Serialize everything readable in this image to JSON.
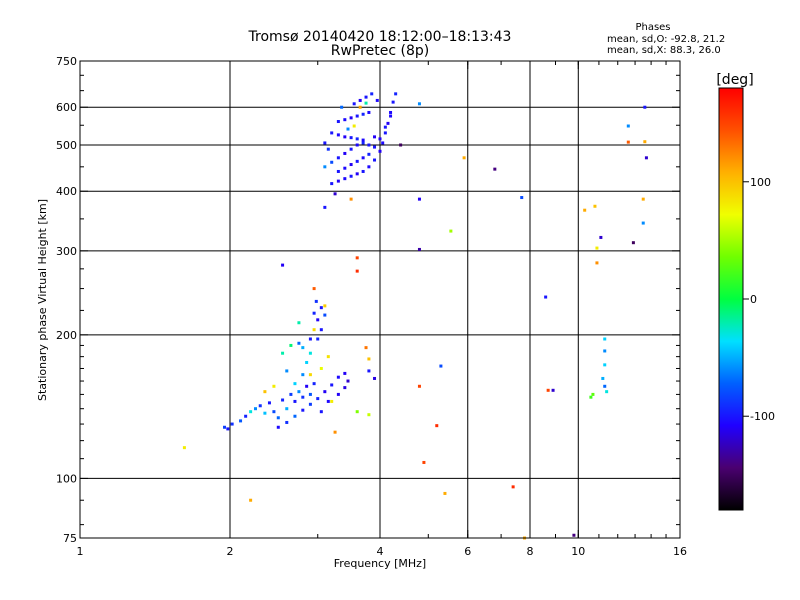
{
  "chart_data": {
    "type": "scatter",
    "title": "Tromsø 20140420 18:12:00–18:13:43",
    "subtitle": "RwPretec (8p)",
    "info": {
      "heading": "Phases",
      "line_o": "mean, sd,O:  -92.8, 21.2",
      "line_x": "mean, sd,X:  88.3, 26.0"
    },
    "xlabel": "Frequency [MHz]",
    "ylabel": "Stationary phase Virtual Height [km]",
    "x_scale": "log",
    "y_scale": "log",
    "xlim": [
      1,
      16
    ],
    "ylim": [
      75,
      750
    ],
    "x_ticks": [
      {
        "value": 1,
        "label": "1"
      },
      {
        "value": 2,
        "label": "2"
      },
      {
        "value": 4,
        "label": "4"
      },
      {
        "value": 6,
        "label": "6"
      },
      {
        "value": 8,
        "label": "8"
      },
      {
        "value": 10,
        "label": "10"
      },
      {
        "value": 16,
        "label": "16"
      }
    ],
    "y_ticks": [
      {
        "value": 75,
        "label": "75"
      },
      {
        "value": 100,
        "label": "100"
      },
      {
        "value": 200,
        "label": "200"
      },
      {
        "value": 300,
        "label": "300"
      },
      {
        "value": 400,
        "label": "400"
      },
      {
        "value": 500,
        "label": "500"
      },
      {
        "value": 600,
        "label": "600"
      },
      {
        "value": 750,
        "label": "750"
      }
    ],
    "x_gridlines": [
      2,
      4,
      6,
      8,
      10
    ],
    "y_gridlines": [
      100,
      200,
      300,
      400,
      500,
      600
    ],
    "grid": true,
    "colorbar": {
      "label": "[deg]",
      "range": [
        -180,
        180
      ],
      "ticks": [
        {
          "value": 100,
          "label": "100"
        },
        {
          "value": 0,
          "label": "0"
        },
        {
          "value": -100,
          "label": "-100"
        }
      ]
    },
    "series": [
      {
        "points": [
          [
            1.62,
            116,
            80
          ],
          [
            1.95,
            128,
            -85
          ],
          [
            1.98,
            127,
            -100
          ],
          [
            2.02,
            130,
            -90
          ],
          [
            2.1,
            132,
            -75
          ],
          [
            2.15,
            135,
            -95
          ],
          [
            2.2,
            138,
            -30
          ],
          [
            2.25,
            140,
            -60
          ],
          [
            2.3,
            142,
            -90
          ],
          [
            2.35,
            137,
            -45
          ],
          [
            2.4,
            144,
            -100
          ],
          [
            2.45,
            138,
            -80
          ],
          [
            2.5,
            134,
            -70
          ],
          [
            2.55,
            146,
            -95
          ],
          [
            2.6,
            140,
            -50
          ],
          [
            2.65,
            150,
            -85
          ],
          [
            2.7,
            145,
            -100
          ],
          [
            2.75,
            152,
            -60
          ],
          [
            2.8,
            148,
            -90
          ],
          [
            2.85,
            156,
            -110
          ],
          [
            2.9,
            150,
            -75
          ],
          [
            2.95,
            158,
            -95
          ],
          [
            2.5,
            128,
            -105
          ],
          [
            2.6,
            131,
            -90
          ],
          [
            2.7,
            135,
            -70
          ],
          [
            2.8,
            139,
            -100
          ],
          [
            2.9,
            143,
            -85
          ],
          [
            3.0,
            147,
            -95
          ],
          [
            3.1,
            152,
            -110
          ],
          [
            3.2,
            157,
            -100
          ],
          [
            3.3,
            163,
            -105
          ],
          [
            3.4,
            166,
            -110
          ],
          [
            3.45,
            160,
            -120
          ],
          [
            3.05,
            138,
            -100
          ],
          [
            3.15,
            145,
            -105
          ],
          [
            3.3,
            150,
            -110
          ],
          [
            3.4,
            155,
            -115
          ],
          [
            2.7,
            158,
            -40
          ],
          [
            2.8,
            165,
            -60
          ],
          [
            2.85,
            175,
            -40
          ],
          [
            2.9,
            183,
            -30
          ],
          [
            2.8,
            188,
            -50
          ],
          [
            2.75,
            192,
            -70
          ],
          [
            2.9,
            196,
            -100
          ],
          [
            3.0,
            196,
            -95
          ],
          [
            3.05,
            205,
            -100
          ],
          [
            3.0,
            215,
            -110
          ],
          [
            2.95,
            222,
            -95
          ],
          [
            3.05,
            228,
            -100
          ],
          [
            2.98,
            235,
            -90
          ],
          [
            3.1,
            220,
            -80
          ],
          [
            3.15,
            180,
            85
          ],
          [
            3.05,
            170,
            70
          ],
          [
            2.9,
            165,
            90
          ],
          [
            2.95,
            205,
            90
          ],
          [
            3.1,
            230,
            95
          ],
          [
            2.95,
            250,
            140
          ],
          [
            2.55,
            280,
            -110
          ],
          [
            2.75,
            212,
            -20
          ],
          [
            2.65,
            190,
            -10
          ],
          [
            2.55,
            183,
            -20
          ],
          [
            2.6,
            168,
            -60
          ],
          [
            3.6,
            290,
            150
          ],
          [
            3.6,
            272,
            160
          ],
          [
            3.75,
            188,
            130
          ],
          [
            3.8,
            178,
            100
          ],
          [
            3.8,
            168,
            -100
          ],
          [
            3.9,
            162,
            -115
          ],
          [
            3.6,
            138,
            40
          ],
          [
            3.8,
            136,
            60
          ],
          [
            3.2,
            145,
            80
          ],
          [
            3.25,
            125,
            120
          ],
          [
            2.35,
            152,
            100
          ],
          [
            2.45,
            156,
            80
          ],
          [
            3.2,
            415,
            -100
          ],
          [
            3.3,
            420,
            -110
          ],
          [
            3.4,
            425,
            -105
          ],
          [
            3.5,
            430,
            -100
          ],
          [
            3.6,
            435,
            -110
          ],
          [
            3.7,
            440,
            -100
          ],
          [
            3.8,
            450,
            -105
          ],
          [
            3.9,
            465,
            -100
          ],
          [
            4.0,
            485,
            -110
          ],
          [
            4.05,
            505,
            -105
          ],
          [
            4.1,
            530,
            -100
          ],
          [
            4.15,
            555,
            -110
          ],
          [
            4.2,
            585,
            -105
          ],
          [
            4.25,
            615,
            -100
          ],
          [
            4.3,
            640,
            -95
          ],
          [
            3.3,
            440,
            -100
          ],
          [
            3.4,
            447,
            -105
          ],
          [
            3.5,
            455,
            -110
          ],
          [
            3.6,
            462,
            -100
          ],
          [
            3.7,
            470,
            -105
          ],
          [
            3.8,
            478,
            -95
          ],
          [
            3.9,
            495,
            -100
          ],
          [
            4.0,
            515,
            -110
          ],
          [
            4.1,
            545,
            -100
          ],
          [
            4.2,
            575,
            -105
          ],
          [
            3.3,
            470,
            -100
          ],
          [
            3.4,
            480,
            -110
          ],
          [
            3.5,
            490,
            -100
          ],
          [
            3.6,
            500,
            -105
          ],
          [
            3.7,
            505,
            -95
          ],
          [
            3.8,
            500,
            -100
          ],
          [
            3.9,
            520,
            -110
          ],
          [
            3.2,
            530,
            -100
          ],
          [
            3.3,
            525,
            -105
          ],
          [
            3.4,
            520,
            -110
          ],
          [
            3.5,
            518,
            -100
          ],
          [
            3.6,
            515,
            -95
          ],
          [
            3.7,
            512,
            -105
          ],
          [
            3.3,
            560,
            -100
          ],
          [
            3.4,
            565,
            -105
          ],
          [
            3.5,
            570,
            -110
          ],
          [
            3.6,
            575,
            -100
          ],
          [
            3.7,
            580,
            -95
          ],
          [
            3.8,
            585,
            -105
          ],
          [
            3.55,
            610,
            -100
          ],
          [
            3.65,
            620,
            -110
          ],
          [
            3.75,
            630,
            -100
          ],
          [
            3.85,
            640,
            -95
          ],
          [
            3.95,
            620,
            -105
          ],
          [
            3.1,
            505,
            -100
          ],
          [
            3.15,
            490,
            -90
          ],
          [
            3.2,
            460,
            -80
          ],
          [
            3.25,
            395,
            -120
          ],
          [
            3.1,
            450,
            -60
          ],
          [
            3.45,
            540,
            -60
          ],
          [
            3.55,
            548,
            80
          ],
          [
            3.65,
            600,
            110
          ],
          [
            3.5,
            385,
            120
          ],
          [
            3.75,
            612,
            -20
          ],
          [
            3.35,
            600,
            -70
          ],
          [
            4.4,
            500,
            -150
          ],
          [
            3.1,
            370,
            -100
          ],
          [
            4.8,
            610,
            -60
          ],
          [
            4.8,
            385,
            -110
          ],
          [
            4.8,
            302,
            -130
          ],
          [
            5.9,
            470,
            110
          ],
          [
            5.55,
            330,
            50
          ],
          [
            6.8,
            445,
            -140
          ],
          [
            7.7,
            388,
            -80
          ],
          [
            8.6,
            240,
            -100
          ],
          [
            8.7,
            153,
            150
          ],
          [
            8.9,
            153,
            -120
          ],
          [
            10.3,
            365,
            110
          ],
          [
            10.8,
            372,
            100
          ],
          [
            10.9,
            283,
            120
          ],
          [
            10.9,
            304,
            80
          ],
          [
            11.1,
            320,
            -120
          ],
          [
            12.6,
            548,
            -60
          ],
          [
            12.6,
            507,
            140
          ],
          [
            12.9,
            312,
            -150
          ],
          [
            13.6,
            600,
            -100
          ],
          [
            13.6,
            508,
            110
          ],
          [
            13.7,
            470,
            -120
          ],
          [
            13.5,
            385,
            110
          ],
          [
            13.5,
            343,
            -60
          ],
          [
            11.3,
            196,
            -40
          ],
          [
            11.3,
            185,
            -60
          ],
          [
            11.3,
            173,
            -40
          ],
          [
            11.2,
            162,
            -50
          ],
          [
            11.3,
            156,
            -70
          ],
          [
            11.4,
            152,
            -30
          ],
          [
            10.6,
            148,
            20
          ],
          [
            10.7,
            150,
            30
          ],
          [
            5.3,
            172,
            -80
          ],
          [
            4.8,
            156,
            150
          ],
          [
            4.9,
            108,
            150
          ],
          [
            5.2,
            129,
            160
          ],
          [
            5.4,
            93,
            110
          ],
          [
            7.4,
            96,
            160
          ],
          [
            9.8,
            76,
            -140
          ],
          [
            7.8,
            75,
            110
          ],
          [
            2.2,
            90,
            110
          ]
        ]
      }
    ]
  }
}
